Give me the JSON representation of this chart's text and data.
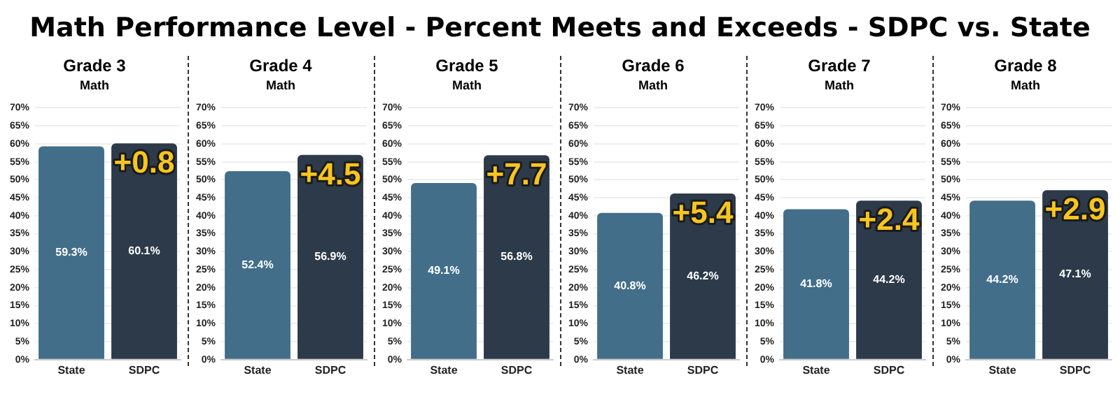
{
  "chart_data": [
    {
      "type": "bar",
      "title": "Grade 3",
      "subtitle": "Math",
      "categories": [
        "State",
        "SDPC"
      ],
      "values": [
        59.3,
        60.1
      ],
      "colors": [
        "#426e8a",
        "#2c3a4a"
      ],
      "value_labels": [
        "59.3%",
        "60.1%"
      ],
      "annotations": [
        "Math Performance Level - Percent Meets and Exceeds - SDPC vs. State",
        "+0.8"
      ],
      "ylim": [
        0,
        70
      ],
      "yticks": [
        {
          "value": 0,
          "label": "0%"
        },
        {
          "value": 5,
          "label": "5%"
        },
        {
          "value": 10,
          "label": "10%"
        },
        {
          "value": 15,
          "label": "15%"
        },
        {
          "value": 20,
          "label": "20%"
        },
        {
          "value": 25,
          "label": "25%"
        },
        {
          "value": 30,
          "label": "30%"
        },
        {
          "value": 35,
          "label": "35%"
        },
        {
          "value": 40,
          "label": "40%"
        },
        {
          "value": 45,
          "label": "45%"
        },
        {
          "value": 50,
          "label": "50%"
        },
        {
          "value": 55,
          "label": "55%"
        },
        {
          "value": 60,
          "label": "60%"
        },
        {
          "value": 65,
          "label": "65%"
        },
        {
          "value": 70,
          "label": "70%"
        }
      ],
      "grid": "y"
    },
    {
      "type": "bar",
      "title": "Grade 4",
      "subtitle": "Math",
      "categories": [
        "State",
        "SDPC"
      ],
      "values": [
        52.4,
        56.9
      ],
      "colors": [
        "#426e8a",
        "#2c3a4a"
      ],
      "value_labels": [
        "52.4%",
        "56.9%"
      ],
      "annotations": [
        "+4.5"
      ],
      "ylim": [
        0,
        70
      ],
      "yticks": [
        {
          "value": 0,
          "label": "0%"
        },
        {
          "value": 5,
          "label": "5%"
        },
        {
          "value": 10,
          "label": "10%"
        },
        {
          "value": 15,
          "label": "15%"
        },
        {
          "value": 20,
          "label": "20%"
        },
        {
          "value": 25,
          "label": "25%"
        },
        {
          "value": 30,
          "label": "30%"
        },
        {
          "value": 35,
          "label": "35%"
        },
        {
          "value": 40,
          "label": "40%"
        },
        {
          "value": 45,
          "label": "45%"
        },
        {
          "value": 50,
          "label": "50%"
        },
        {
          "value": 55,
          "label": "55%"
        },
        {
          "value": 60,
          "label": "60%"
        },
        {
          "value": 65,
          "label": "65%"
        },
        {
          "value": 70,
          "label": "70%"
        }
      ],
      "grid": "y"
    },
    {
      "type": "bar",
      "title": "Grade 5",
      "subtitle": "Math",
      "categories": [
        "State",
        "SDPC"
      ],
      "values": [
        49.1,
        56.8
      ],
      "colors": [
        "#426e8a",
        "#2c3a4a"
      ],
      "value_labels": [
        "49.1%",
        "56.8%"
      ],
      "annotations": [
        "+7.7"
      ],
      "ylim": [
        0,
        70
      ],
      "yticks": [
        {
          "value": 0,
          "label": "0%"
        },
        {
          "value": 5,
          "label": "5%"
        },
        {
          "value": 10,
          "label": "10%"
        },
        {
          "value": 15,
          "label": "15%"
        },
        {
          "value": 20,
          "label": "20%"
        },
        {
          "value": 25,
          "label": "25%"
        },
        {
          "value": 30,
          "label": "30%"
        },
        {
          "value": 35,
          "label": "35%"
        },
        {
          "value": 40,
          "label": "40%"
        },
        {
          "value": 45,
          "label": "45%"
        },
        {
          "value": 50,
          "label": "50%"
        },
        {
          "value": 55,
          "label": "55%"
        },
        {
          "value": 60,
          "label": "60%"
        },
        {
          "value": 65,
          "label": "65%"
        },
        {
          "value": 70,
          "label": "70%"
        }
      ],
      "grid": "y"
    },
    {
      "type": "bar",
      "title": "Grade 6",
      "subtitle": "Math",
      "categories": [
        "State",
        "SDPC"
      ],
      "values": [
        40.8,
        46.2
      ],
      "colors": [
        "#426e8a",
        "#2c3a4a"
      ],
      "value_labels": [
        "40.8%",
        "46.2%"
      ],
      "annotations": [
        "+5.4"
      ],
      "ylim": [
        0,
        70
      ],
      "yticks": [
        {
          "value": 0,
          "label": "0%"
        },
        {
          "value": 5,
          "label": "5%"
        },
        {
          "value": 10,
          "label": "10%"
        },
        {
          "value": 15,
          "label": "15%"
        },
        {
          "value": 20,
          "label": "20%"
        },
        {
          "value": 25,
          "label": "25%"
        },
        {
          "value": 30,
          "label": "30%"
        },
        {
          "value": 35,
          "label": "35%"
        },
        {
          "value": 40,
          "label": "40%"
        },
        {
          "value": 45,
          "label": "45%"
        },
        {
          "value": 50,
          "label": "50%"
        },
        {
          "value": 55,
          "label": "55%"
        },
        {
          "value": 60,
          "label": "60%"
        },
        {
          "value": 65,
          "label": "65%"
        },
        {
          "value": 70,
          "label": "70%"
        }
      ],
      "grid": "y"
    },
    {
      "type": "bar",
      "title": "Grade 7",
      "subtitle": "Math",
      "categories": [
        "State",
        "SDPC"
      ],
      "values": [
        41.8,
        44.2
      ],
      "colors": [
        "#426e8a",
        "#2c3a4a"
      ],
      "value_labels": [
        "41.8%",
        "44.2%"
      ],
      "annotations": [
        "+2.4"
      ],
      "ylim": [
        0,
        70
      ],
      "yticks": [
        {
          "value": 0,
          "label": "0%"
        },
        {
          "value": 5,
          "label": "5%"
        },
        {
          "value": 10,
          "label": "10%"
        },
        {
          "value": 15,
          "label": "15%"
        },
        {
          "value": 20,
          "label": "20%"
        },
        {
          "value": 25,
          "label": "25%"
        },
        {
          "value": 30,
          "label": "30%"
        },
        {
          "value": 35,
          "label": "35%"
        },
        {
          "value": 40,
          "label": "40%"
        },
        {
          "value": 45,
          "label": "45%"
        },
        {
          "value": 50,
          "label": "50%"
        },
        {
          "value": 55,
          "label": "55%"
        },
        {
          "value": 60,
          "label": "60%"
        },
        {
          "value": 65,
          "label": "65%"
        },
        {
          "value": 70,
          "label": "70%"
        }
      ],
      "grid": "y"
    },
    {
      "type": "bar",
      "title": "Grade 8",
      "subtitle": "Math",
      "categories": [
        "State",
        "SDPC"
      ],
      "values": [
        44.2,
        47.1
      ],
      "colors": [
        "#426e8a",
        "#2c3a4a"
      ],
      "value_labels": [
        "44.2%",
        "47.1%"
      ],
      "annotations": [
        "+2.9"
      ],
      "ylim": [
        0,
        70
      ],
      "yticks": [
        {
          "value": 0,
          "label": "0%"
        },
        {
          "value": 5,
          "label": "5%"
        },
        {
          "value": 10,
          "label": "10%"
        },
        {
          "value": 15,
          "label": "15%"
        },
        {
          "value": 20,
          "label": "20%"
        },
        {
          "value": 25,
          "label": "25%"
        },
        {
          "value": 30,
          "label": "30%"
        },
        {
          "value": 35,
          "label": "35%"
        },
        {
          "value": 40,
          "label": "40%"
        },
        {
          "value": 45,
          "label": "45%"
        },
        {
          "value": 50,
          "label": "50%"
        },
        {
          "value": 55,
          "label": "55%"
        },
        {
          "value": 60,
          "label": "60%"
        },
        {
          "value": 65,
          "label": "65%"
        },
        {
          "value": 70,
          "label": "70%"
        }
      ],
      "grid": "y"
    }
  ]
}
